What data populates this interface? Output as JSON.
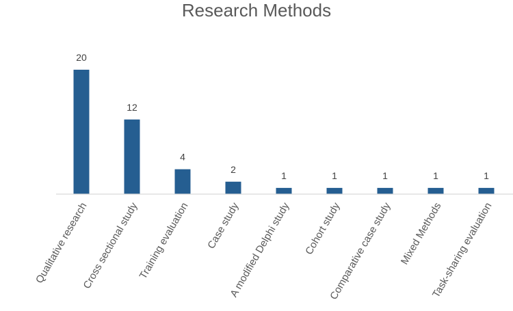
{
  "chart_data": {
    "type": "bar",
    "title": "Research Methods",
    "xlabel": "",
    "ylabel": "",
    "categories": [
      "Qualitative research",
      "Cross sectional study",
      "Training evaluation",
      "Case study",
      "A modified Delphi study",
      "Cohort study",
      "Comparative case study",
      "Mixed Methods",
      "Task-sharing evaluation"
    ],
    "values": [
      20,
      12,
      4,
      2,
      1,
      1,
      1,
      1,
      1
    ],
    "data_labels": [
      "20",
      "12",
      "4",
      "2",
      "1",
      "1",
      "1",
      "1",
      "1"
    ],
    "ylim": [
      0,
      20
    ],
    "grid": false,
    "legend": "none",
    "colors": {
      "bar": "#255E91",
      "axis": "#D9D9D9",
      "title": "#595959",
      "label": "#404040",
      "tick": "#595959"
    }
  }
}
